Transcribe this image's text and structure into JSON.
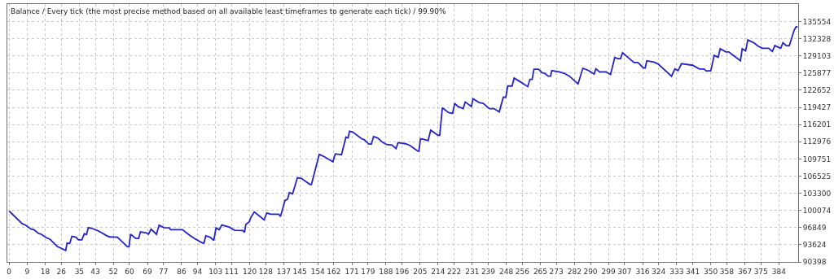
{
  "chart_data": {
    "type": "line",
    "title": "Balance / Every tick (the most precise method based on all available least timeframes to generate each tick) / 99.90%",
    "xlim": [
      -0.9,
      393.6
    ],
    "ylim": [
      90398,
      138850
    ],
    "xticks": [
      0,
      9,
      18,
      26,
      35,
      43,
      52,
      60,
      69,
      77,
      86,
      94,
      103,
      111,
      120,
      128,
      137,
      145,
      154,
      162,
      171,
      179,
      188,
      196,
      205,
      214,
      222,
      231,
      239,
      248,
      256,
      265,
      273,
      282,
      290,
      299,
      307,
      316,
      324,
      333,
      341,
      350,
      358,
      367,
      375,
      384
    ],
    "yticks": [
      90398,
      93624,
      96849,
      100074,
      103300,
      106525,
      109751,
      112976,
      116201,
      119427,
      122652,
      125877,
      129103,
      132328,
      135554
    ],
    "grid": true,
    "marker": "none",
    "line_style": "solid",
    "series": [
      {
        "color": "#2424c8",
        "x": [
          0,
          6.6,
          8,
          11,
          12.4,
          14.6,
          16,
          18.6,
          20.4,
          24,
          26,
          28.2,
          28.9,
          30.2,
          31.3,
          33.3,
          34.6,
          36.3,
          37.5,
          38.6,
          39.5,
          41.3,
          44.6,
          48.6,
          50,
          54,
          59,
          59.8,
          60.6,
          63.2,
          64.6,
          65.5,
          68.5,
          69.5,
          70.8,
          73.5,
          74.8,
          77.2,
          79.9,
          80.5,
          86.5,
          89.9,
          92.5,
          96.5,
          97.2,
          98.1,
          100.2,
          102.1,
          103.2,
          104.8,
          106.1,
          109.8,
          112.5,
          116.5,
          117.4,
          118.1,
          119.8,
          120.5,
          122.3,
          127.2,
          128.5,
          130.5,
          134.5,
          135.4,
          137.6,
          138.9,
          139.8,
          141.4,
          143.8,
          145.8,
          150.1,
          150.8,
          154.7,
          157.1,
          161.5,
          162.7,
          165.8,
          168,
          169.1,
          169.8,
          171.4,
          175.8,
          177.2,
          179.4,
          180.7,
          181.8,
          183.8,
          186.4,
          188.4,
          191,
          193,
          194,
          197.8,
          199.9,
          203.9,
          204.4,
          205.2,
          206.5,
          209,
          210.3,
          213.9,
          214.8,
          216.1,
          219.2,
          221.2,
          222.3,
          223.9,
          226.5,
          227.5,
          230.6,
          231.4,
          234.5,
          236.5,
          239.6,
          241.9,
          244.5,
          246.5,
          247.8,
          248.7,
          250.9,
          251.9,
          254.5,
          258.7,
          259.8,
          260.9,
          261.8,
          264.1,
          265.8,
          267.1,
          268.9,
          270.1,
          270.7,
          274.5,
          276.8,
          279.5,
          283.8,
          286.2,
          289.1,
          291.8,
          292.7,
          294.5,
          297.8,
          300,
          302.1,
          303.7,
          305,
          306,
          311.7,
          313.7,
          316.4,
          317.3,
          318.1,
          321.7,
          323.7,
          330.4,
          332.1,
          333.7,
          335.4,
          341,
          344.3,
          346.6,
          347.7,
          350,
          351.7,
          353.7,
          354.7,
          357.6,
          359,
          361.6,
          364.8,
          365.7,
          367.4,
          368.5,
          371.6,
          373.6,
          375.8,
          378.9,
          380.7,
          382,
          383.3,
          384.9,
          386,
          387.6,
          389.2,
          391.6,
          392.6,
          393.3
        ],
        "values": [
          99950,
          97550,
          97350,
          96550,
          96450,
          95750,
          95600,
          94950,
          94650,
          93300,
          92950,
          92550,
          93950,
          93850,
          95200,
          95050,
          94550,
          94550,
          95700,
          95550,
          96850,
          96700,
          96200,
          95350,
          95100,
          95050,
          93250,
          93250,
          95600,
          94800,
          94800,
          96050,
          95850,
          95600,
          96550,
          95600,
          97300,
          96850,
          96800,
          96450,
          96450,
          95450,
          94800,
          93950,
          93950,
          95300,
          95050,
          94450,
          96800,
          96450,
          97350,
          96950,
          96350,
          96300,
          95950,
          97450,
          97950,
          98700,
          99800,
          98300,
          99600,
          99350,
          99350,
          98950,
          101950,
          102200,
          103450,
          103200,
          106200,
          106100,
          104950,
          104950,
          110600,
          110200,
          109200,
          110700,
          110550,
          113850,
          113700,
          114950,
          114800,
          113550,
          113350,
          112550,
          112550,
          113950,
          113700,
          112850,
          112450,
          112350,
          111700,
          112800,
          112600,
          112300,
          111200,
          111200,
          113550,
          113450,
          113200,
          115150,
          114200,
          114200,
          119350,
          118450,
          118300,
          120200,
          119600,
          119200,
          120450,
          119600,
          121050,
          120350,
          120200,
          119200,
          119200,
          118600,
          121350,
          121350,
          123450,
          123450,
          124950,
          124350,
          123350,
          124700,
          124700,
          126600,
          126600,
          125950,
          125850,
          125300,
          125300,
          126350,
          126100,
          125850,
          125300,
          123850,
          126800,
          126350,
          125700,
          126700,
          126100,
          126100,
          125600,
          128800,
          128600,
          128600,
          129700,
          127850,
          127850,
          126850,
          126850,
          128200,
          127950,
          127600,
          125300,
          126650,
          126350,
          127650,
          127350,
          126650,
          126650,
          126300,
          126300,
          129200,
          128850,
          130450,
          129850,
          129850,
          129100,
          128200,
          130450,
          130050,
          132100,
          131550,
          130950,
          130550,
          130550,
          129950,
          131050,
          130800,
          130550,
          131600,
          131050,
          131050,
          133950,
          134600,
          134550
        ]
      }
    ]
  }
}
